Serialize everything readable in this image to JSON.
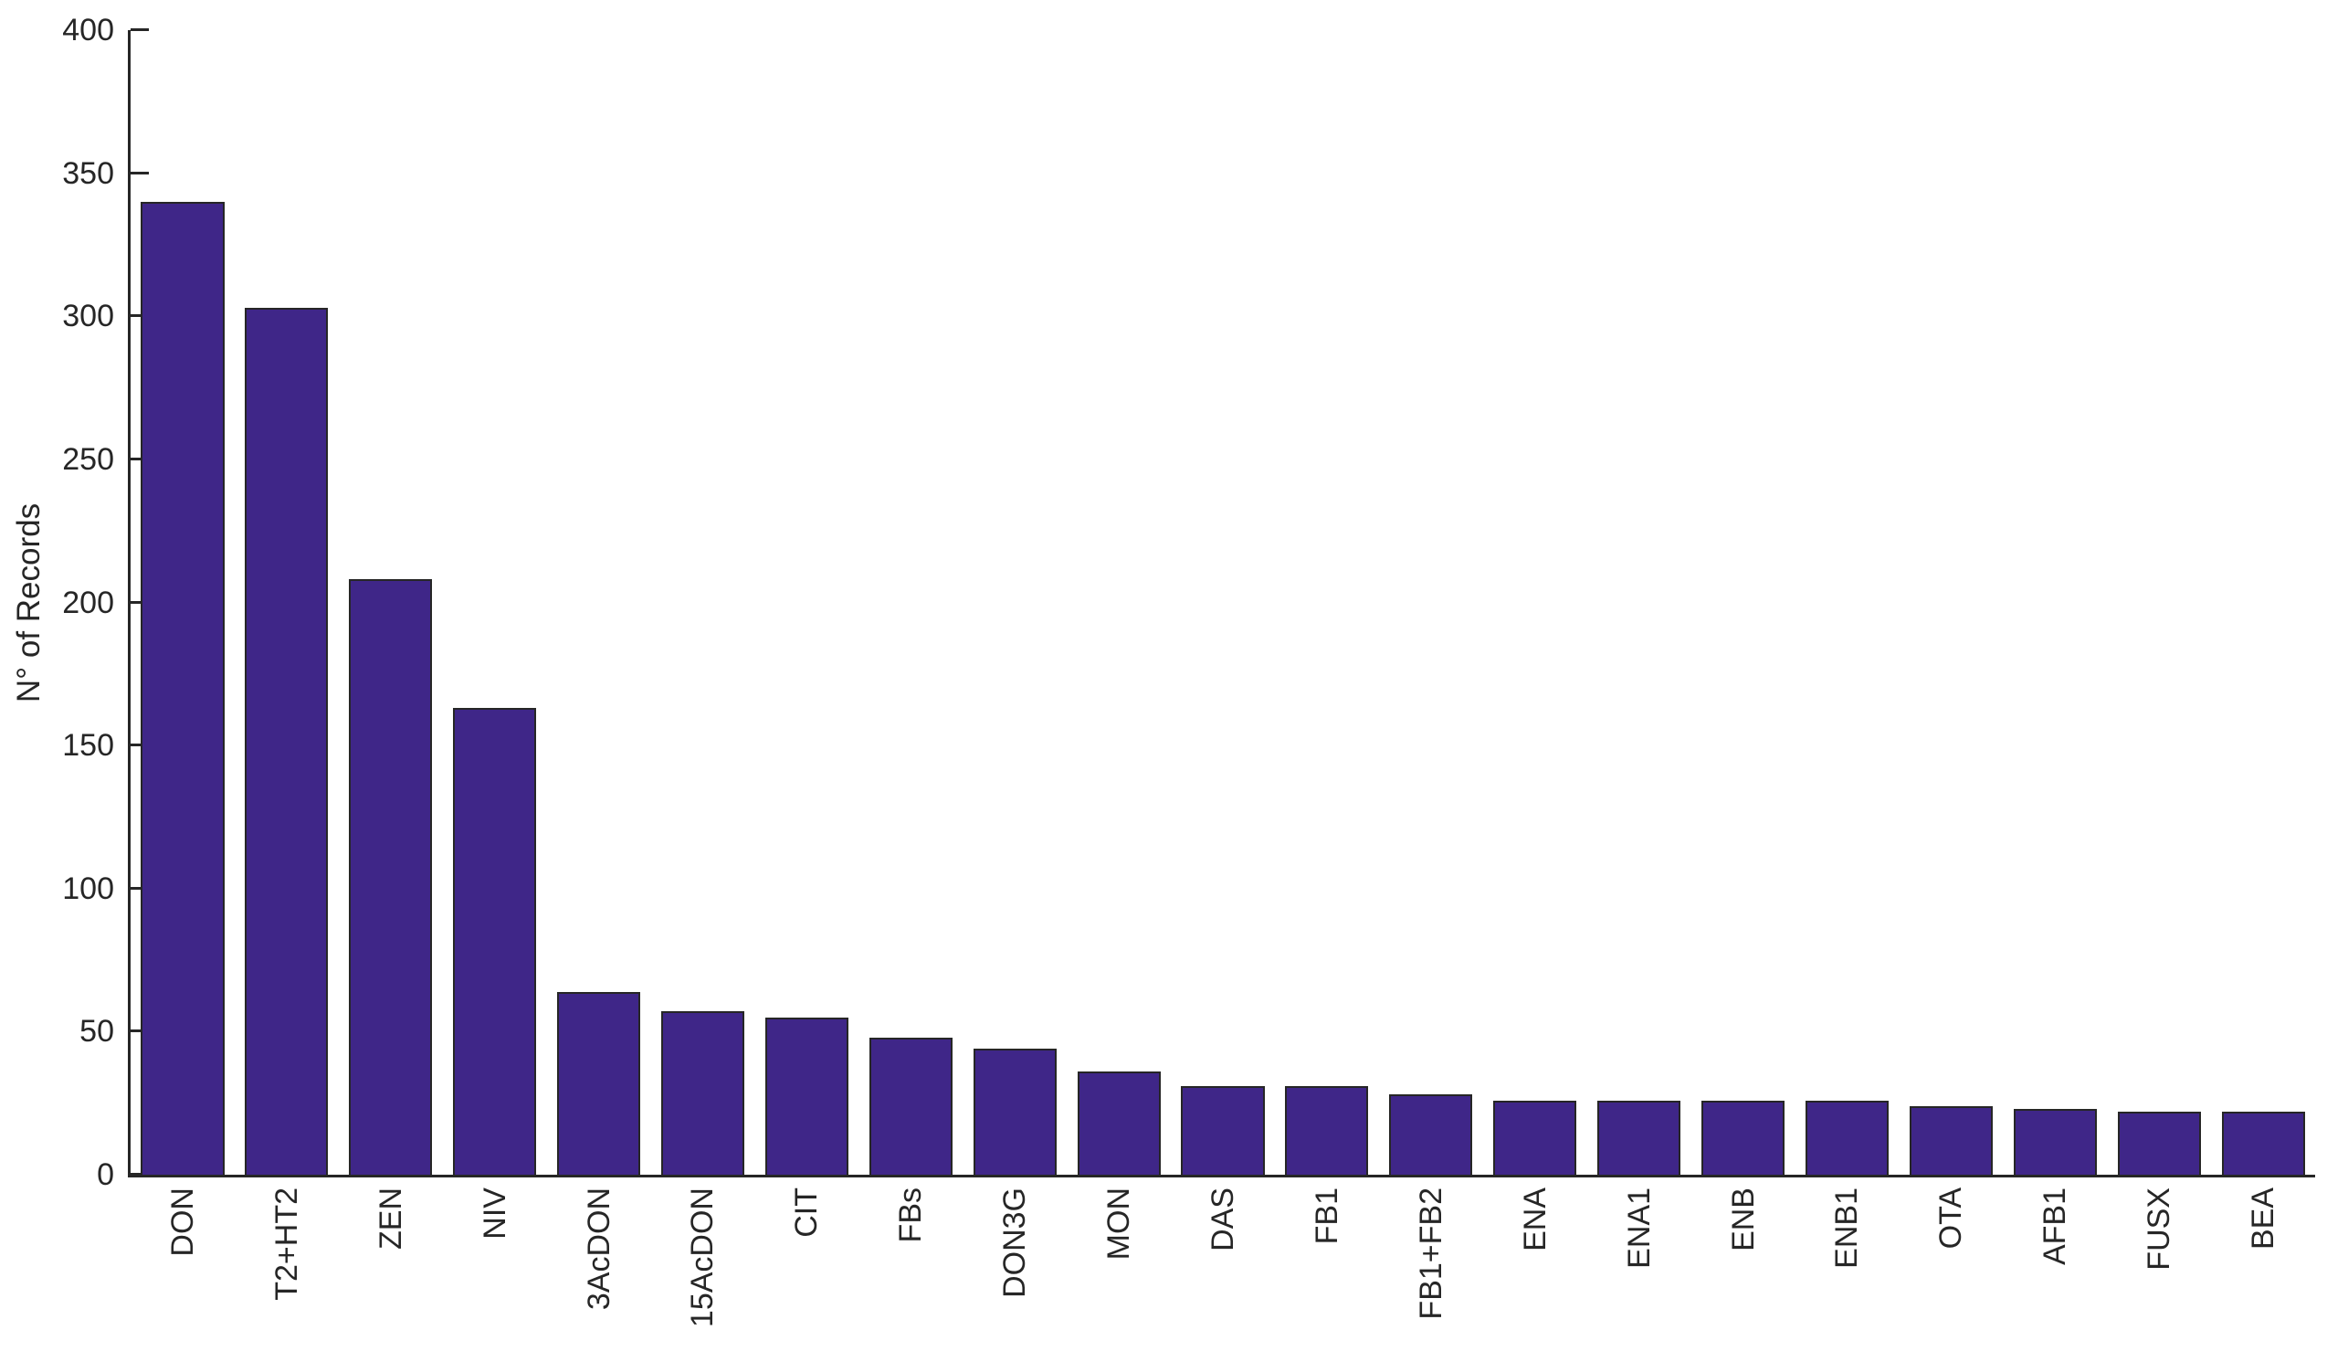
{
  "chart_data": {
    "type": "bar",
    "title": "",
    "xlabel": "",
    "ylabel": "N° of Records",
    "categories": [
      "DON",
      "T2+HT2",
      "ZEN",
      "NIV",
      "3AcDON",
      "15AcDON",
      "CIT",
      "FBs",
      "DON3G",
      "MON",
      "DAS",
      "FB1",
      "FB1+FB2",
      "ENA",
      "ENA1",
      "ENB",
      "ENB1",
      "OTA",
      "AFB1",
      "FUSX",
      "BEA"
    ],
    "values": [
      340,
      303,
      208,
      163,
      64,
      57,
      55,
      48,
      44,
      36,
      31,
      31,
      28,
      26,
      26,
      26,
      26,
      24,
      23,
      22,
      22
    ],
    "ylim": [
      0,
      400
    ],
    "yticks": [
      0,
      50,
      100,
      150,
      200,
      250,
      300,
      350,
      400
    ],
    "grid": false,
    "legend_position": "none",
    "bar_width_fraction": 0.8,
    "xtick_rotation_deg": 90,
    "bar_color": "#3F2688",
    "bar_edge_color": "#262626",
    "axis_color": "#262626",
    "text_color": "#262626",
    "background_color": "#FFFFFF"
  }
}
